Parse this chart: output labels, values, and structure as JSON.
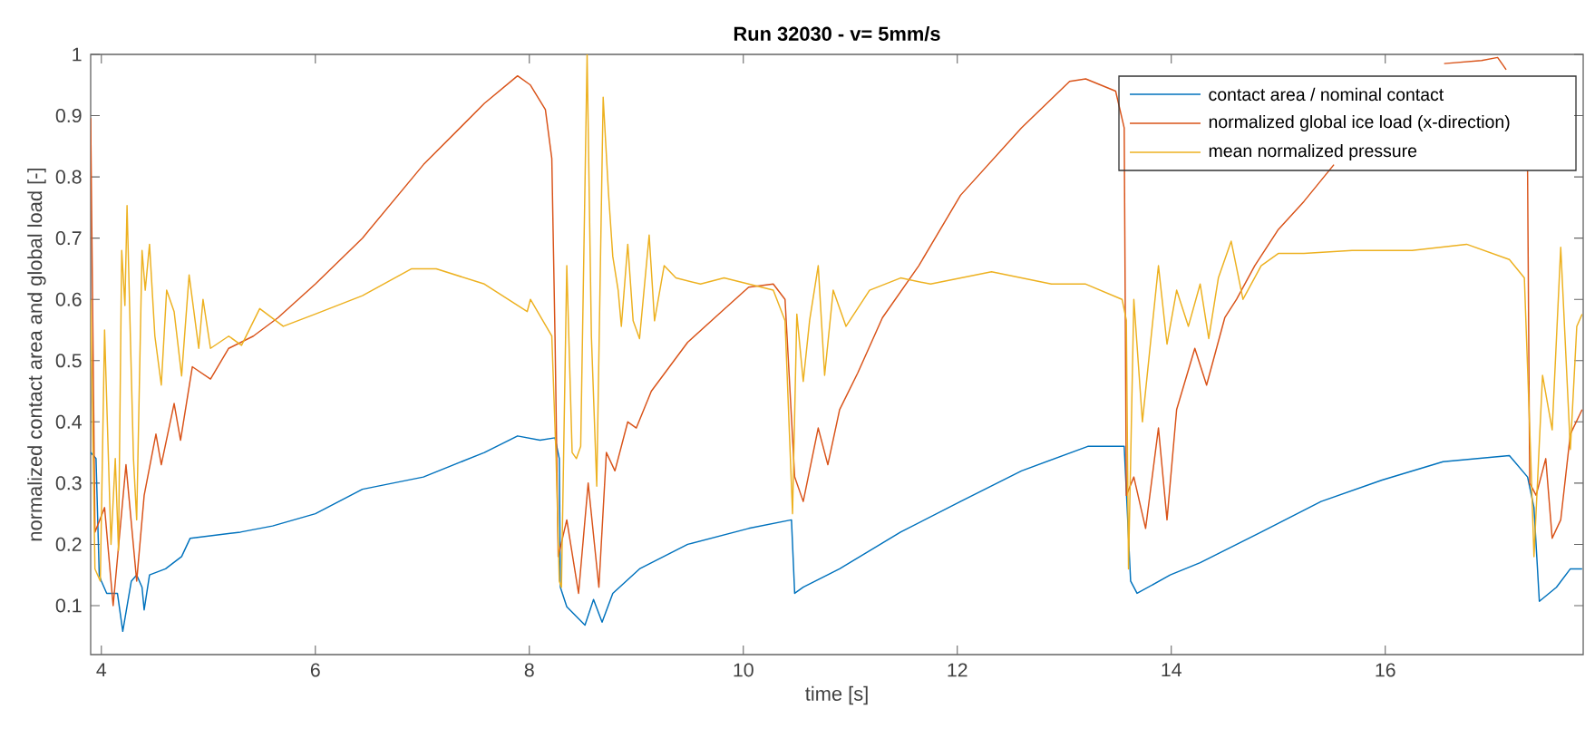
{
  "chart_data": {
    "type": "line",
    "title": "Run 32030 - v= 5mm/s",
    "xlabel": "time [s]",
    "ylabel": "normalized contact area and global load [-]",
    "xlim": [
      3.9,
      17.85
    ],
    "ylim": [
      0.02,
      1
    ],
    "xticks": [
      4,
      6,
      8,
      10,
      12,
      14,
      16
    ],
    "yticks": [
      0.1,
      0.2,
      0.3,
      0.4,
      0.5,
      0.6,
      0.7,
      0.8,
      0.9,
      1
    ],
    "legend": "top right",
    "grid": false,
    "series": [
      {
        "name": "contact area / nominal contact",
        "color": "#0072bd",
        "x": [
          3.9,
          3.95,
          3.98,
          4.0,
          4.05,
          4.15,
          4.2,
          4.28,
          4.33,
          4.38,
          4.4,
          4.45,
          4.6,
          4.75,
          4.83,
          5.3,
          5.6,
          6.0,
          6.44,
          7.01,
          7.58,
          7.89,
          8.1,
          8.24,
          8.28,
          8.29,
          8.35,
          8.52,
          8.6,
          8.68,
          8.78,
          9.03,
          9.48,
          10.05,
          10.45,
          10.48,
          10.56,
          10.9,
          11.47,
          12.03,
          12.6,
          13.22,
          13.56,
          13.62,
          13.68,
          13.99,
          14.27,
          14.84,
          15.4,
          15.97,
          16.54,
          17.16,
          17.33,
          17.39,
          17.44,
          17.6,
          17.73,
          17.84
        ],
        "values": [
          0.35,
          0.34,
          0.15,
          0.14,
          0.12,
          0.12,
          0.058,
          0.14,
          0.15,
          0.13,
          0.093,
          0.15,
          0.16,
          0.18,
          0.21,
          0.22,
          0.23,
          0.25,
          0.29,
          0.31,
          0.35,
          0.377,
          0.37,
          0.374,
          0.34,
          0.13,
          0.098,
          0.068,
          0.11,
          0.073,
          0.12,
          0.16,
          0.2,
          0.226,
          0.24,
          0.12,
          0.13,
          0.16,
          0.22,
          0.27,
          0.32,
          0.36,
          0.36,
          0.14,
          0.12,
          0.15,
          0.17,
          0.22,
          0.27,
          0.305,
          0.335,
          0.345,
          0.31,
          0.26,
          0.107,
          0.13,
          0.16,
          0.16
        ]
      },
      {
        "name": "normalized global ice load (x-direction)",
        "color": "#d95319",
        "x": [
          3.9,
          3.94,
          4.03,
          4.11,
          4.23,
          4.33,
          4.4,
          4.51,
          4.56,
          4.68,
          4.74,
          4.85,
          5.02,
          5.19,
          5.42,
          5.65,
          6.0,
          6.44,
          7.01,
          7.58,
          7.89,
          8.01,
          8.15,
          8.21,
          8.24,
          8.27,
          8.35,
          8.46,
          8.55,
          8.65,
          8.72,
          8.8,
          8.92,
          9.0,
          9.14,
          9.31,
          9.48,
          9.77,
          10.05,
          10.28,
          10.39,
          10.48,
          10.56,
          10.7,
          10.79,
          10.9,
          11.07,
          11.3,
          11.64,
          12.03,
          12.6,
          13.05,
          13.2,
          13.48,
          13.56,
          13.58,
          13.65,
          13.76,
          13.88,
          13.96,
          14.05,
          14.22,
          14.33,
          14.5,
          14.61,
          14.78,
          15.0,
          15.24,
          15.52,
          16.0,
          16.55,
          16.9,
          17.05,
          17.13,
          17.25,
          17.33,
          17.35,
          17.41,
          17.5,
          17.56,
          17.64,
          17.73,
          17.84
        ],
        "values": [
          0.896,
          0.22,
          0.26,
          0.1,
          0.33,
          0.14,
          0.28,
          0.38,
          0.33,
          0.43,
          0.37,
          0.49,
          0.47,
          0.52,
          0.54,
          0.57,
          0.625,
          0.7,
          0.82,
          0.92,
          0.965,
          0.95,
          0.91,
          0.83,
          0.54,
          0.18,
          0.24,
          0.12,
          0.3,
          0.13,
          0.35,
          0.32,
          0.4,
          0.39,
          0.45,
          0.49,
          0.53,
          0.576,
          0.62,
          0.625,
          0.6,
          0.31,
          0.27,
          0.39,
          0.33,
          0.42,
          0.48,
          0.57,
          0.655,
          0.77,
          0.88,
          0.956,
          0.96,
          0.94,
          0.88,
          0.28,
          0.31,
          0.226,
          0.39,
          0.24,
          0.42,
          0.52,
          0.46,
          0.57,
          0.6,
          0.655,
          0.714,
          0.76,
          0.82,
          null,
          0.985,
          0.99,
          0.995,
          0.975,
          null,
          0.81,
          0.3,
          0.28,
          0.34,
          0.21,
          0.24,
          0.38,
          0.42
        ]
      },
      {
        "name": "mean normalized pressure",
        "color": "#edb120",
        "x": [
          3.9,
          3.94,
          3.99,
          4.03,
          4.09,
          4.13,
          4.16,
          4.19,
          4.22,
          4.24,
          4.3,
          4.33,
          4.38,
          4.41,
          4.45,
          4.5,
          4.56,
          4.61,
          4.68,
          4.75,
          4.82,
          4.91,
          4.95,
          5.02,
          5.19,
          5.31,
          5.48,
          5.7,
          6.0,
          6.44,
          6.9,
          7.13,
          7.58,
          7.98,
          8.01,
          8.21,
          8.25,
          8.28,
          8.3,
          8.35,
          8.4,
          8.44,
          8.48,
          8.54,
          8.58,
          8.63,
          8.69,
          8.74,
          8.78,
          8.83,
          8.86,
          8.92,
          8.97,
          9.03,
          9.12,
          9.17,
          9.26,
          9.37,
          9.6,
          9.82,
          10.05,
          10.28,
          10.39,
          10.44,
          10.46,
          10.5,
          10.56,
          10.62,
          10.7,
          10.76,
          10.84,
          10.96,
          11.18,
          11.47,
          11.75,
          12.32,
          12.88,
          13.2,
          13.54,
          13.58,
          13.6,
          13.65,
          13.73,
          13.88,
          13.96,
          14.05,
          14.16,
          14.27,
          14.35,
          14.44,
          14.56,
          14.67,
          14.84,
          15.0,
          15.24,
          15.69,
          16.25,
          16.76,
          17.16,
          17.3,
          17.36,
          17.39,
          17.47,
          17.56,
          17.64,
          17.73,
          17.79,
          17.84
        ],
        "values": [
          0.6,
          0.16,
          0.14,
          0.55,
          0.2,
          0.34,
          0.19,
          0.68,
          0.59,
          0.753,
          0.34,
          0.24,
          0.68,
          0.615,
          0.69,
          0.54,
          0.46,
          0.615,
          0.58,
          0.475,
          0.64,
          0.52,
          0.6,
          0.52,
          0.54,
          0.525,
          0.585,
          0.556,
          0.576,
          0.606,
          0.65,
          0.65,
          0.625,
          0.58,
          0.6,
          0.54,
          0.34,
          0.14,
          0.13,
          0.655,
          0.35,
          0.34,
          0.36,
          1.0,
          0.54,
          0.295,
          0.93,
          0.773,
          0.67,
          0.615,
          0.556,
          0.69,
          0.565,
          0.536,
          0.705,
          0.565,
          0.655,
          0.635,
          0.625,
          0.635,
          0.625,
          0.615,
          0.565,
          0.34,
          0.25,
          0.576,
          0.466,
          0.566,
          0.655,
          0.476,
          0.615,
          0.556,
          0.615,
          0.635,
          0.625,
          0.645,
          0.625,
          0.625,
          0.6,
          0.566,
          0.16,
          0.6,
          0.4,
          0.655,
          0.527,
          0.615,
          0.556,
          0.625,
          0.536,
          0.635,
          0.695,
          0.6,
          0.655,
          0.675,
          0.675,
          0.68,
          0.68,
          0.69,
          0.665,
          0.635,
          0.34,
          0.18,
          0.476,
          0.387,
          0.685,
          0.355,
          0.556,
          0.576
        ]
      }
    ]
  }
}
